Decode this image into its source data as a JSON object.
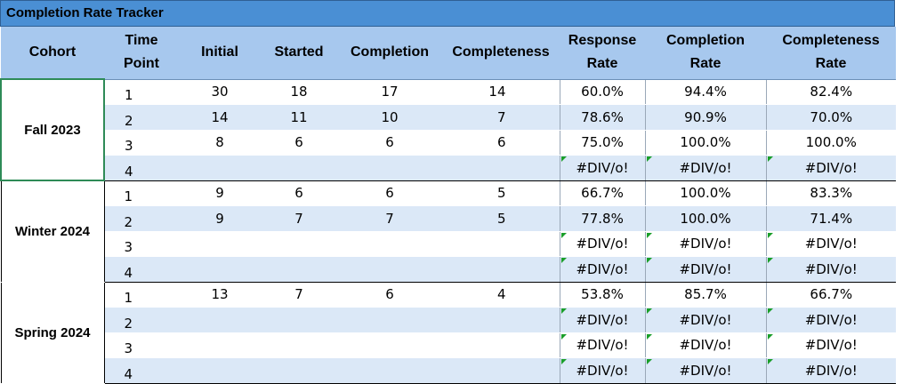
{
  "title": "Completion Rate Tracker",
  "headers": {
    "cohort": "Cohort",
    "time_point": [
      "Time",
      "Point"
    ],
    "initial": "Initial",
    "started": "Started",
    "completion": "Completion",
    "completeness": "Completeness",
    "response_rate": [
      "Response",
      "Rate"
    ],
    "completion_rate": [
      "Completion",
      "Rate"
    ],
    "completeness_rate": [
      "Completeness",
      "Rate"
    ]
  },
  "cohorts": [
    {
      "name": "Fall 2023",
      "rows": [
        {
          "tp": "1",
          "initial": "30",
          "started": "18",
          "completion": "17",
          "completeness": "14",
          "response_rate": "60.0%",
          "completion_rate": "94.4%",
          "completeness_rate": "82.4%"
        },
        {
          "tp": "2",
          "initial": "14",
          "started": "11",
          "completion": "10",
          "completeness": "7",
          "response_rate": "78.6%",
          "completion_rate": "90.9%",
          "completeness_rate": "70.0%"
        },
        {
          "tp": "3",
          "initial": "8",
          "started": "6",
          "completion": "6",
          "completeness": "6",
          "response_rate": "75.0%",
          "completion_rate": "100.0%",
          "completeness_rate": "100.0%"
        },
        {
          "tp": "4",
          "initial": "",
          "started": "",
          "completion": "",
          "completeness": "",
          "response_rate": "#DIV/o!",
          "completion_rate": "#DIV/o!",
          "completeness_rate": "#DIV/o!"
        }
      ]
    },
    {
      "name": "Winter 2024",
      "rows": [
        {
          "tp": "1",
          "initial": "9",
          "started": "6",
          "completion": "6",
          "completeness": "5",
          "response_rate": "66.7%",
          "completion_rate": "100.0%",
          "completeness_rate": "83.3%"
        },
        {
          "tp": "2",
          "initial": "9",
          "started": "7",
          "completion": "7",
          "completeness": "5",
          "response_rate": "77.8%",
          "completion_rate": "100.0%",
          "completeness_rate": "71.4%"
        },
        {
          "tp": "3",
          "initial": "",
          "started": "",
          "completion": "",
          "completeness": "",
          "response_rate": "#DIV/o!",
          "completion_rate": "#DIV/o!",
          "completeness_rate": "#DIV/o!"
        },
        {
          "tp": "4",
          "initial": "",
          "started": "",
          "completion": "",
          "completeness": "",
          "response_rate": "#DIV/o!",
          "completion_rate": "#DIV/o!",
          "completeness_rate": "#DIV/o!"
        }
      ]
    },
    {
      "name": "Spring 2024",
      "rows": [
        {
          "tp": "1",
          "initial": "13",
          "started": "7",
          "completion": "6",
          "completeness": "4",
          "response_rate": "53.8%",
          "completion_rate": "85.7%",
          "completeness_rate": "66.7%"
        },
        {
          "tp": "2",
          "initial": "",
          "started": "",
          "completion": "",
          "completeness": "",
          "response_rate": "#DIV/o!",
          "completion_rate": "#DIV/o!",
          "completeness_rate": "#DIV/o!"
        },
        {
          "tp": "3",
          "initial": "",
          "started": "",
          "completion": "",
          "completeness": "",
          "response_rate": "#DIV/o!",
          "completion_rate": "#DIV/o!",
          "completeness_rate": "#DIV/o!"
        },
        {
          "tp": "4",
          "initial": "",
          "started": "",
          "completion": "",
          "completeness": "",
          "response_rate": "#DIV/o!",
          "completion_rate": "#DIV/o!",
          "completeness_rate": "#DIV/o!"
        }
      ]
    }
  ],
  "colors": {
    "title_bar": "#4a8fd4",
    "header_bg": "#a7c8ee",
    "alt_row_bg": "#dbe8f7",
    "error_flag": "#1a9e2a",
    "selection_border": "#2e8b57"
  }
}
